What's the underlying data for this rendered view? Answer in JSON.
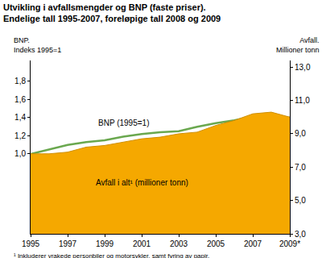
{
  "chart_data": {
    "type": "line",
    "title": "Utvikling i avfallsmengder og BNP (faste priser).",
    "subtitle": "Endelige tall 1995-2007, foreløpige tall 2008 og 2009",
    "ylabel": [
      "BNP.",
      "Indeks 1995=1"
    ],
    "y2label": [
      "Avfall.",
      "Millioner tonn"
    ],
    "footnote": "¹ Inkluderer vrakede personbiler og motorsykler, samt fyring av papir.",
    "x": [
      1995,
      1996,
      1997,
      1998,
      1999,
      2000,
      2001,
      2002,
      2003,
      2004,
      2005,
      2006,
      2007,
      2008,
      2009
    ],
    "series": [
      {
        "name": "Avfall i alt¹ (millioner tonn)",
        "type": "area",
        "axis": "y2",
        "color": "#f5a800",
        "values": [
          7.8,
          7.8,
          7.9,
          8.2,
          8.3,
          8.5,
          8.7,
          8.8,
          9.0,
          9.1,
          9.5,
          9.8,
          10.2,
          10.3,
          10.0
        ]
      },
      {
        "name": "BNP (1995=1)",
        "type": "line",
        "color": "#6aa84f",
        "values": [
          1.0,
          1.05,
          1.1,
          1.13,
          1.15,
          1.19,
          1.22,
          1.24,
          1.25,
          1.3,
          1.34,
          1.37,
          1.41,
          1.42,
          1.4
        ]
      }
    ],
    "xlim": [
      1995,
      2009
    ],
    "xticks": [
      1995,
      1997,
      1999,
      2001,
      2003,
      2005,
      2007,
      {
        "value": 2009,
        "label": "2009*"
      }
    ],
    "ylim": [
      0.12,
      2.03
    ],
    "yticks": [
      {
        "value": 1.0,
        "label": "1,0"
      },
      {
        "value": 1.2,
        "label": "1,2"
      },
      {
        "value": 1.4,
        "label": "1,4"
      },
      {
        "value": 1.6,
        "label": "1,6"
      },
      {
        "value": 1.8,
        "label": "1,8"
      }
    ],
    "y2lim": [
      3,
      13.4
    ],
    "y2ticks": [
      {
        "value": 3,
        "label": "3,0"
      },
      {
        "value": 5,
        "label": "5,0"
      },
      {
        "value": 7,
        "label": "7,0"
      },
      {
        "value": 9,
        "label": "9,0"
      },
      {
        "value": 11,
        "label": "11,0"
      },
      {
        "value": 13,
        "label": "13,0"
      }
    ],
    "grid": false
  }
}
